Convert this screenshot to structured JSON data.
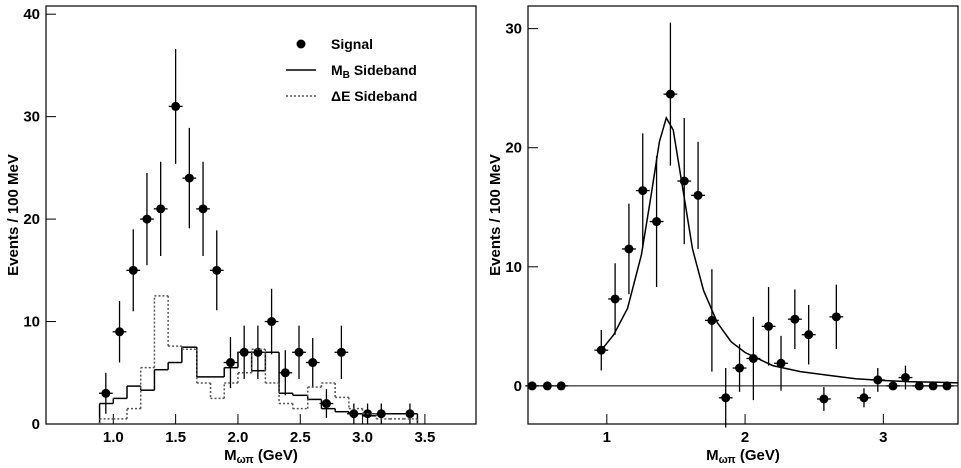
{
  "chart_data": [
    {
      "type": "errorbar",
      "x_label": [
        "M",
        "ωπ",
        " (GeV)"
      ],
      "y_label": "Events / 100 MeV",
      "xlim": [
        0.46,
        3.91
      ],
      "ylim": [
        0,
        40.8
      ],
      "xticks": [
        {
          "value": 1,
          "label": "1.0"
        },
        1.5,
        {
          "value": 2,
          "label": "2.0"
        },
        2.5,
        {
          "value": 3,
          "label": "3.0"
        },
        3.5
      ],
      "yticks": [
        0,
        10,
        20,
        30,
        40
      ],
      "legend": "upper right",
      "series": [
        {
          "name": [
            "Signal"
          ],
          "kind": "points",
          "color": "#000000",
          "xerr": 0.055,
          "x": [
            0.94,
            1.05,
            1.16,
            1.27,
            1.38,
            1.5,
            1.61,
            1.72,
            1.83,
            1.94,
            2.05,
            2.16,
            2.27,
            2.38,
            2.49,
            2.6,
            2.71,
            2.83,
            2.93,
            3.04,
            3.15,
            3.38
          ],
          "values": [
            3,
            9,
            15,
            20,
            21,
            31,
            24,
            21,
            15,
            6,
            7,
            7,
            10,
            5,
            7,
            6,
            2,
            7,
            1,
            1,
            1,
            1
          ],
          "errors": [
            2,
            3,
            4,
            4.5,
            4.6,
            5.6,
            4.9,
            4.6,
            3.9,
            2.5,
            2.6,
            2.6,
            3.2,
            2.2,
            2.6,
            2.4,
            1.4,
            2.6,
            1,
            1,
            1,
            1
          ]
        },
        {
          "name": [
            "M",
            "B",
            " Sideband"
          ],
          "kind": "step",
          "color": "#000000",
          "linestyle": "solid",
          "bins": [
            0.89,
            1.0,
            1.11,
            1.22,
            1.33,
            1.44,
            1.55,
            1.67,
            1.78,
            1.89,
            2.0,
            2.11,
            2.22,
            2.33,
            2.44,
            2.56,
            2.67,
            2.78,
            2.89,
            3.0,
            3.11,
            3.22,
            3.33,
            3.44
          ],
          "values": [
            2,
            2.5,
            3.7,
            3.3,
            5.3,
            6,
            7.5,
            4.6,
            4.6,
            5.5,
            7,
            5.2,
            7,
            3,
            2.8,
            2.4,
            1.5,
            1.2,
            1,
            0.8,
            1,
            1,
            1
          ]
        },
        {
          "name": [
            "ΔE Sideband"
          ],
          "kind": "step",
          "color": "#555555",
          "linestyle": "dotted",
          "bins": [
            0.89,
            1.0,
            1.11,
            1.22,
            1.33,
            1.44,
            1.55,
            1.67,
            1.78,
            1.89,
            2.0,
            2.11,
            2.22,
            2.33,
            2.44,
            2.56,
            2.67,
            2.78,
            2.89,
            3.0,
            3.11,
            3.22,
            3.33,
            3.44
          ],
          "values": [
            0.5,
            0.5,
            1.5,
            5.5,
            12.5,
            7.6,
            7.3,
            4,
            2.5,
            4,
            5,
            7.3,
            4,
            2,
            1.5,
            3.6,
            4,
            2.6,
            1.5,
            1,
            0.5,
            0.5,
            0.5
          ]
        }
      ]
    },
    {
      "type": "errorbar",
      "x_label": [
        "M",
        "ωπ",
        " (GeV)"
      ],
      "y_label": "Events / 100 MeV",
      "xlim": [
        0.43,
        3.54
      ],
      "ylim": [
        -3.2,
        31.9
      ],
      "xticks": [
        1,
        2,
        3
      ],
      "yticks": [
        0,
        10,
        20,
        30
      ],
      "zero_line": true,
      "series": [
        {
          "kind": "points",
          "color": "#000000",
          "xerr": 0.05,
          "x": [
            0.46,
            0.57,
            0.67,
            0.96,
            1.06,
            1.16,
            1.26,
            1.36,
            1.46,
            1.56,
            1.66,
            1.76,
            1.86,
            1.96,
            2.06,
            2.17,
            2.26,
            2.36,
            2.46,
            2.57,
            2.66,
            2.86,
            2.96,
            3.07,
            3.16,
            3.26,
            3.36,
            3.46
          ],
          "values": [
            0,
            0,
            0,
            3,
            7.3,
            11.5,
            16.4,
            13.8,
            24.5,
            17.2,
            16,
            5.5,
            -1,
            1.5,
            2.3,
            5,
            1.9,
            5.6,
            4.3,
            -1.1,
            5.8,
            -1,
            0.5,
            0,
            0.7,
            0,
            0,
            0
          ],
          "errors": [
            0,
            0,
            0,
            1.7,
            3,
            3.8,
            4.8,
            5.5,
            6,
            5.3,
            4.5,
            4.3,
            2.5,
            2,
            3.5,
            3.3,
            2.3,
            2.5,
            2.5,
            1,
            2.7,
            0.8,
            1,
            0,
            1,
            0,
            0,
            0
          ]
        },
        {
          "kind": "line",
          "color": "#000000",
          "x": [
            0.96,
            1.05,
            1.15,
            1.25,
            1.32,
            1.38,
            1.43,
            1.48,
            1.55,
            1.62,
            1.7,
            1.8,
            1.9,
            2.0,
            2.2,
            2.4,
            2.6,
            2.8,
            3.0,
            3.2,
            3.4,
            3.54
          ],
          "values": [
            3,
            4.3,
            6.5,
            11,
            16,
            20.5,
            22.5,
            21.5,
            16.5,
            11.5,
            8,
            5.3,
            3.7,
            2.8,
            1.7,
            1.2,
            0.9,
            0.6,
            0.45,
            0.35,
            0.3,
            0.25
          ]
        }
      ]
    }
  ]
}
